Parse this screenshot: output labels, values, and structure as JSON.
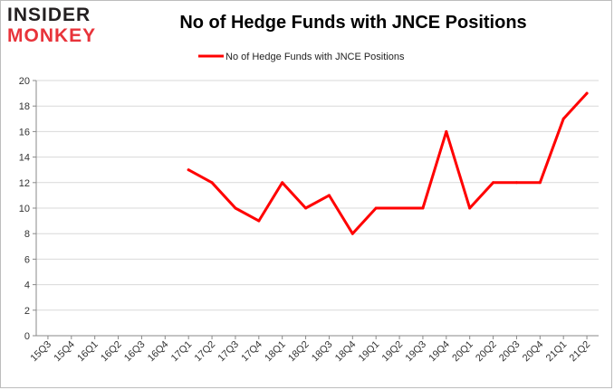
{
  "logo": {
    "line1": "INSIDER",
    "line2": "MONKEY"
  },
  "chart_data": {
    "type": "line",
    "title": "No of Hedge Funds with JNCE Positions",
    "xlabel": "",
    "ylabel": "",
    "categories": [
      "15Q3",
      "15Q4",
      "16Q1",
      "16Q2",
      "16Q3",
      "16Q4",
      "17Q1",
      "17Q2",
      "17Q3",
      "17Q4",
      "18Q1",
      "18Q2",
      "18Q3",
      "18Q4",
      "19Q1",
      "19Q2",
      "19Q3",
      "19Q4",
      "20Q1",
      "20Q2",
      "20Q3",
      "20Q4",
      "21Q1",
      "21Q2"
    ],
    "series": [
      {
        "name": "No of Hedge Funds with JNCE Positions",
        "color": "#ff0000",
        "values": [
          null,
          null,
          null,
          null,
          null,
          null,
          13,
          12,
          10,
          9,
          12,
          10,
          11,
          8,
          10,
          10,
          10,
          16,
          10,
          12,
          12,
          12,
          17,
          19
        ]
      }
    ],
    "ylim": [
      0,
      20
    ],
    "yticks": [
      0,
      2,
      4,
      6,
      8,
      10,
      12,
      14,
      16,
      18,
      20
    ],
    "grid": true,
    "legend": "top-center"
  }
}
